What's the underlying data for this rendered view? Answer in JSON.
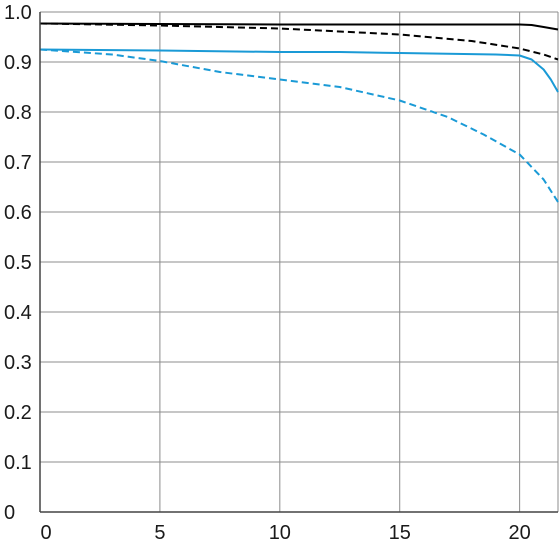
{
  "chart_data": {
    "type": "line",
    "title": "",
    "xlabel": "",
    "ylabel": "",
    "xlim": [
      0,
      21.6
    ],
    "ylim": [
      0,
      1.0
    ],
    "grid": true,
    "x_ticks": [
      0,
      5,
      10,
      15,
      20
    ],
    "x_tick_labels": [
      "0",
      "5",
      "10",
      "15",
      "20"
    ],
    "y_ticks": [
      0,
      0.1,
      0.2,
      0.3,
      0.4,
      0.5,
      0.6,
      0.7,
      0.8,
      0.9,
      1.0
    ],
    "y_tick_labels": [
      "0",
      "0.1",
      "0.2",
      "0.3",
      "0.4",
      "0.5",
      "0.6",
      "0.7",
      "0.8",
      "0.9",
      "1.0"
    ],
    "series": [
      {
        "color": "#000000",
        "dash": "solid",
        "points": [
          [
            0,
            0.977
          ],
          [
            5,
            0.976
          ],
          [
            10,
            0.975
          ],
          [
            15,
            0.975
          ],
          [
            19,
            0.975
          ],
          [
            20,
            0.975
          ],
          [
            20.5,
            0.974
          ],
          [
            21,
            0.97
          ],
          [
            21.6,
            0.965
          ]
        ]
      },
      {
        "color": "#000000",
        "dash": "dashed",
        "points": [
          [
            0,
            0.977
          ],
          [
            5,
            0.973
          ],
          [
            10,
            0.967
          ],
          [
            15,
            0.955
          ],
          [
            18,
            0.942
          ],
          [
            20,
            0.927
          ],
          [
            21,
            0.915
          ],
          [
            21.6,
            0.905
          ]
        ]
      },
      {
        "color": "#1a9ad6",
        "dash": "solid",
        "points": [
          [
            0,
            0.925
          ],
          [
            5,
            0.923
          ],
          [
            10,
            0.92
          ],
          [
            12.5,
            0.92
          ],
          [
            15,
            0.918
          ],
          [
            19,
            0.915
          ],
          [
            20,
            0.913
          ],
          [
            20.5,
            0.905
          ],
          [
            21,
            0.885
          ],
          [
            21.3,
            0.865
          ],
          [
            21.6,
            0.84
          ]
        ]
      },
      {
        "color": "#1a9ad6",
        "dash": "dashed",
        "points": [
          [
            0,
            0.925
          ],
          [
            3,
            0.915
          ],
          [
            5,
            0.902
          ],
          [
            7.5,
            0.88
          ],
          [
            10,
            0.865
          ],
          [
            12.5,
            0.85
          ],
          [
            15,
            0.823
          ],
          [
            17,
            0.79
          ],
          [
            18.5,
            0.755
          ],
          [
            20,
            0.715
          ],
          [
            21,
            0.665
          ],
          [
            21.6,
            0.62
          ]
        ]
      }
    ]
  }
}
